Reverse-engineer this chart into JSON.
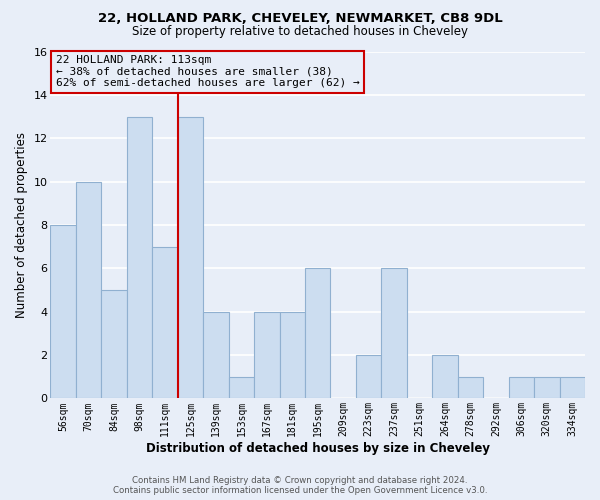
{
  "title1": "22, HOLLAND PARK, CHEVELEY, NEWMARKET, CB8 9DL",
  "title2": "Size of property relative to detached houses in Cheveley",
  "xlabel": "Distribution of detached houses by size in Cheveley",
  "ylabel": "Number of detached properties",
  "bar_labels": [
    "56sqm",
    "70sqm",
    "84sqm",
    "98sqm",
    "111sqm",
    "125sqm",
    "139sqm",
    "153sqm",
    "167sqm",
    "181sqm",
    "195sqm",
    "209sqm",
    "223sqm",
    "237sqm",
    "251sqm",
    "264sqm",
    "278sqm",
    "292sqm",
    "306sqm",
    "320sqm",
    "334sqm"
  ],
  "bar_values": [
    8,
    10,
    5,
    13,
    7,
    13,
    4,
    1,
    4,
    4,
    6,
    0,
    2,
    6,
    0,
    2,
    1,
    0,
    1,
    1,
    1
  ],
  "bar_color": "#ccddf0",
  "bar_edge_color": "#90b0d0",
  "vline_x_index": 4,
  "vline_color": "#cc0000",
  "annotation_text": "22 HOLLAND PARK: 113sqm\n← 38% of detached houses are smaller (38)\n62% of semi-detached houses are larger (62) →",
  "annotation_box_edge": "#cc0000",
  "ylim": [
    0,
    16
  ],
  "yticks": [
    0,
    2,
    4,
    6,
    8,
    10,
    12,
    14,
    16
  ],
  "footer1": "Contains HM Land Registry data © Crown copyright and database right 2024.",
  "footer2": "Contains public sector information licensed under the Open Government Licence v3.0.",
  "background_color": "#e8eef8",
  "grid_color": "#ffffff",
  "ax_background": "#e8eef8"
}
